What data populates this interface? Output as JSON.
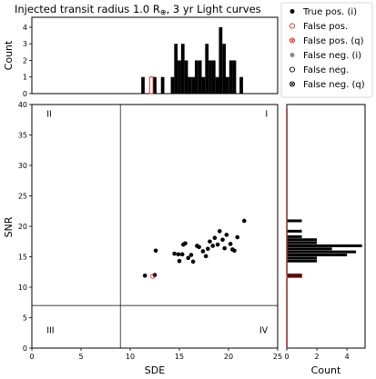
{
  "title": "Injected transit radius 1.0 R",
  "title_sub": "⊕",
  "title_tail": ", 3 yr Light curves",
  "legend": [
    {
      "label": "True pos. (i)",
      "marker": "filled",
      "color": "#000000"
    },
    {
      "label": "False pos.",
      "marker": "open",
      "color": "#d62728"
    },
    {
      "label": "False pos. (q)",
      "marker": "crossed",
      "color": "#d62728"
    },
    {
      "label": "False neg. (i)",
      "marker": "filled",
      "color": "#888888"
    },
    {
      "label": "False neg.",
      "marker": "open",
      "color": "#000000"
    },
    {
      "label": "False neg. (q)",
      "marker": "crossed",
      "color": "#000000"
    }
  ],
  "chart_data": [
    {
      "type": "scatter",
      "xlabel": "SDE",
      "ylabel": "SNR",
      "xlim": [
        0,
        25
      ],
      "ylim": [
        0,
        40
      ],
      "xticks": [
        0,
        5,
        10,
        15,
        20,
        25
      ],
      "yticks": [
        0,
        5,
        10,
        15,
        20,
        25,
        30,
        35,
        40
      ],
      "vline": 9,
      "hline": 7,
      "quadrants": [
        "I",
        "II",
        "III",
        "IV"
      ],
      "series": [
        {
          "name": "True pos. (i)",
          "color": "#000000",
          "points": [
            [
              11.5,
              11.9
            ],
            [
              12.5,
              12.0
            ],
            [
              12.6,
              16.0
            ],
            [
              14.5,
              15.5
            ],
            [
              14.9,
              15.4
            ],
            [
              15.0,
              14.3
            ],
            [
              15.3,
              15.4
            ],
            [
              15.6,
              17.2
            ],
            [
              15.9,
              14.8
            ],
            [
              16.2,
              15.3
            ],
            [
              16.4,
              14.2
            ],
            [
              16.8,
              16.8
            ],
            [
              17.0,
              16.6
            ],
            [
              17.4,
              15.9
            ],
            [
              17.7,
              15.1
            ],
            [
              17.9,
              16.3
            ],
            [
              18.1,
              17.5
            ],
            [
              18.4,
              16.8
            ],
            [
              18.6,
              18.1
            ],
            [
              18.9,
              17.0
            ],
            [
              19.1,
              19.2
            ],
            [
              19.4,
              17.8
            ],
            [
              19.6,
              16.4
            ],
            [
              19.8,
              18.6
            ],
            [
              20.2,
              17.1
            ],
            [
              20.4,
              16.2
            ],
            [
              20.6,
              16.0
            ],
            [
              20.9,
              18.2
            ],
            [
              21.6,
              20.9
            ],
            [
              15.4,
              17.0
            ]
          ]
        },
        {
          "name": "False pos.",
          "color": "#d62728",
          "marker": "open",
          "points": [
            [
              12.3,
              11.8
            ]
          ]
        }
      ]
    },
    {
      "type": "bar",
      "xlabel": "",
      "ylabel": "Count",
      "xlim": [
        0,
        25
      ],
      "ylim": [
        0,
        4.6
      ],
      "yticks": [
        0,
        1,
        2,
        3,
        4
      ],
      "bin_width": 0.35,
      "series": [
        {
          "name": "True pos. (i)",
          "color": "#000000",
          "bins": [
            [
              11.3,
              1
            ],
            [
              12.5,
              1
            ],
            [
              13.3,
              1
            ],
            [
              14.3,
              1
            ],
            [
              14.65,
              3
            ],
            [
              15.0,
              2
            ],
            [
              15.35,
              3
            ],
            [
              15.7,
              2
            ],
            [
              16.05,
              1
            ],
            [
              16.4,
              1
            ],
            [
              16.75,
              2
            ],
            [
              17.1,
              2
            ],
            [
              17.45,
              1
            ],
            [
              17.8,
              3
            ],
            [
              18.15,
              2
            ],
            [
              18.5,
              2
            ],
            [
              18.85,
              1
            ],
            [
              19.2,
              4
            ],
            [
              19.55,
              3
            ],
            [
              19.9,
              1
            ],
            [
              20.25,
              2
            ],
            [
              20.6,
              2
            ],
            [
              21.3,
              1
            ]
          ]
        },
        {
          "name": "False pos.",
          "color": "#d62728",
          "fill": "open",
          "bins": [
            [
              12.15,
              1
            ]
          ]
        }
      ]
    },
    {
      "type": "bar",
      "orientation": "horizontal",
      "xlabel": "Count",
      "ylabel": "",
      "xlim": [
        0,
        5.2
      ],
      "xticks": [
        0,
        2,
        4
      ],
      "ylim": [
        0,
        40
      ],
      "bin_width": 0.45,
      "series": [
        {
          "name": "True pos. (i)",
          "color": "#000000",
          "bins": [
            [
              11.9,
              1
            ],
            [
              12.0,
              1
            ],
            [
              14.3,
              2
            ],
            [
              14.8,
              2
            ],
            [
              15.3,
              4
            ],
            [
              15.8,
              4.6
            ],
            [
              16.3,
              3
            ],
            [
              16.8,
              5
            ],
            [
              17.3,
              2
            ],
            [
              17.8,
              2
            ],
            [
              18.3,
              1
            ],
            [
              19.2,
              1
            ],
            [
              20.9,
              1
            ]
          ]
        },
        {
          "name": "False pos.",
          "color": "#d62728",
          "fill": "open",
          "bins": [
            [
              11.8,
              1
            ]
          ]
        }
      ]
    }
  ]
}
